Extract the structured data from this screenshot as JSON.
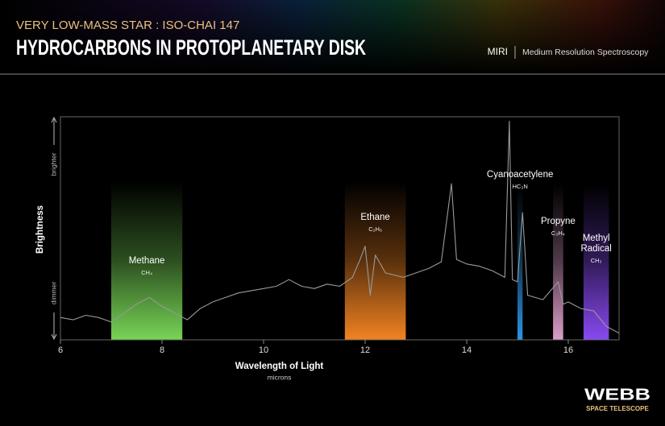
{
  "header": {
    "subtitle": "VERY LOW-MASS STAR : ISO-CHAI 147",
    "title": "HYDROCARBONS IN PROTOPLANETARY DISK",
    "instrument": "MIRI",
    "mode": "Medium Resolution Spectroscopy"
  },
  "logo": {
    "name": "WEBB",
    "tagline": "SPACE TELESCOPE"
  },
  "chart_data": {
    "type": "line",
    "color": "#9a9a9a",
    "xlabel": "Wavelength of Light",
    "xunit": "microns",
    "ylabel": "Brightness",
    "ytop_label": "brighter",
    "ybottom_label": "dimmer",
    "xlim": [
      6,
      17
    ],
    "xticks": [
      6,
      8,
      10,
      12,
      14,
      16
    ],
    "ylim": [
      0,
      100
    ],
    "x": [
      6.0,
      6.25,
      6.5,
      6.75,
      7.0,
      7.25,
      7.5,
      7.75,
      8.0,
      8.25,
      8.5,
      8.75,
      9.0,
      9.25,
      9.5,
      9.75,
      10.0,
      10.25,
      10.5,
      10.75,
      11.0,
      11.25,
      11.5,
      11.75,
      11.9,
      12.0,
      12.1,
      12.2,
      12.4,
      12.75,
      13.0,
      13.25,
      13.5,
      13.7,
      13.8,
      14.0,
      14.25,
      14.5,
      14.75,
      14.84,
      14.9,
      15.0,
      15.1,
      15.2,
      15.5,
      15.8,
      15.9,
      16.0,
      16.25,
      16.5,
      16.75,
      17.0
    ],
    "values": [
      10,
      9,
      11,
      10,
      8,
      12,
      16,
      19,
      15,
      12,
      9,
      14,
      17,
      19,
      21,
      22,
      23,
      24,
      27,
      24,
      23,
      25,
      24,
      28,
      36,
      42,
      20,
      38,
      30,
      28,
      30,
      32,
      35,
      70,
      36,
      34,
      33,
      31,
      28,
      98,
      27,
      26,
      57,
      20,
      18,
      26,
      16,
      17,
      14,
      13,
      6,
      3
    ],
    "bands": [
      {
        "name": "Methane",
        "formula": "CH₄",
        "color": "#7ee05a",
        "range": [
          7.0,
          8.4
        ]
      },
      {
        "name": "Ethane",
        "formula": "C₂H₆",
        "color": "#ff8a24",
        "range": [
          11.6,
          12.8
        ]
      },
      {
        "name": "Cyanoacetylene",
        "formula": "HC₃N",
        "color": "#2f9cf0",
        "range": [
          15.0,
          15.1
        ]
      },
      {
        "name": "Propyne",
        "formula": "C₃H₄",
        "color": "#e7a6d4",
        "range": [
          15.7,
          15.9
        ]
      },
      {
        "name": "Methyl Radical",
        "formula": "CH₃",
        "color": "#8f4dff",
        "range": [
          16.3,
          16.8
        ]
      }
    ]
  }
}
